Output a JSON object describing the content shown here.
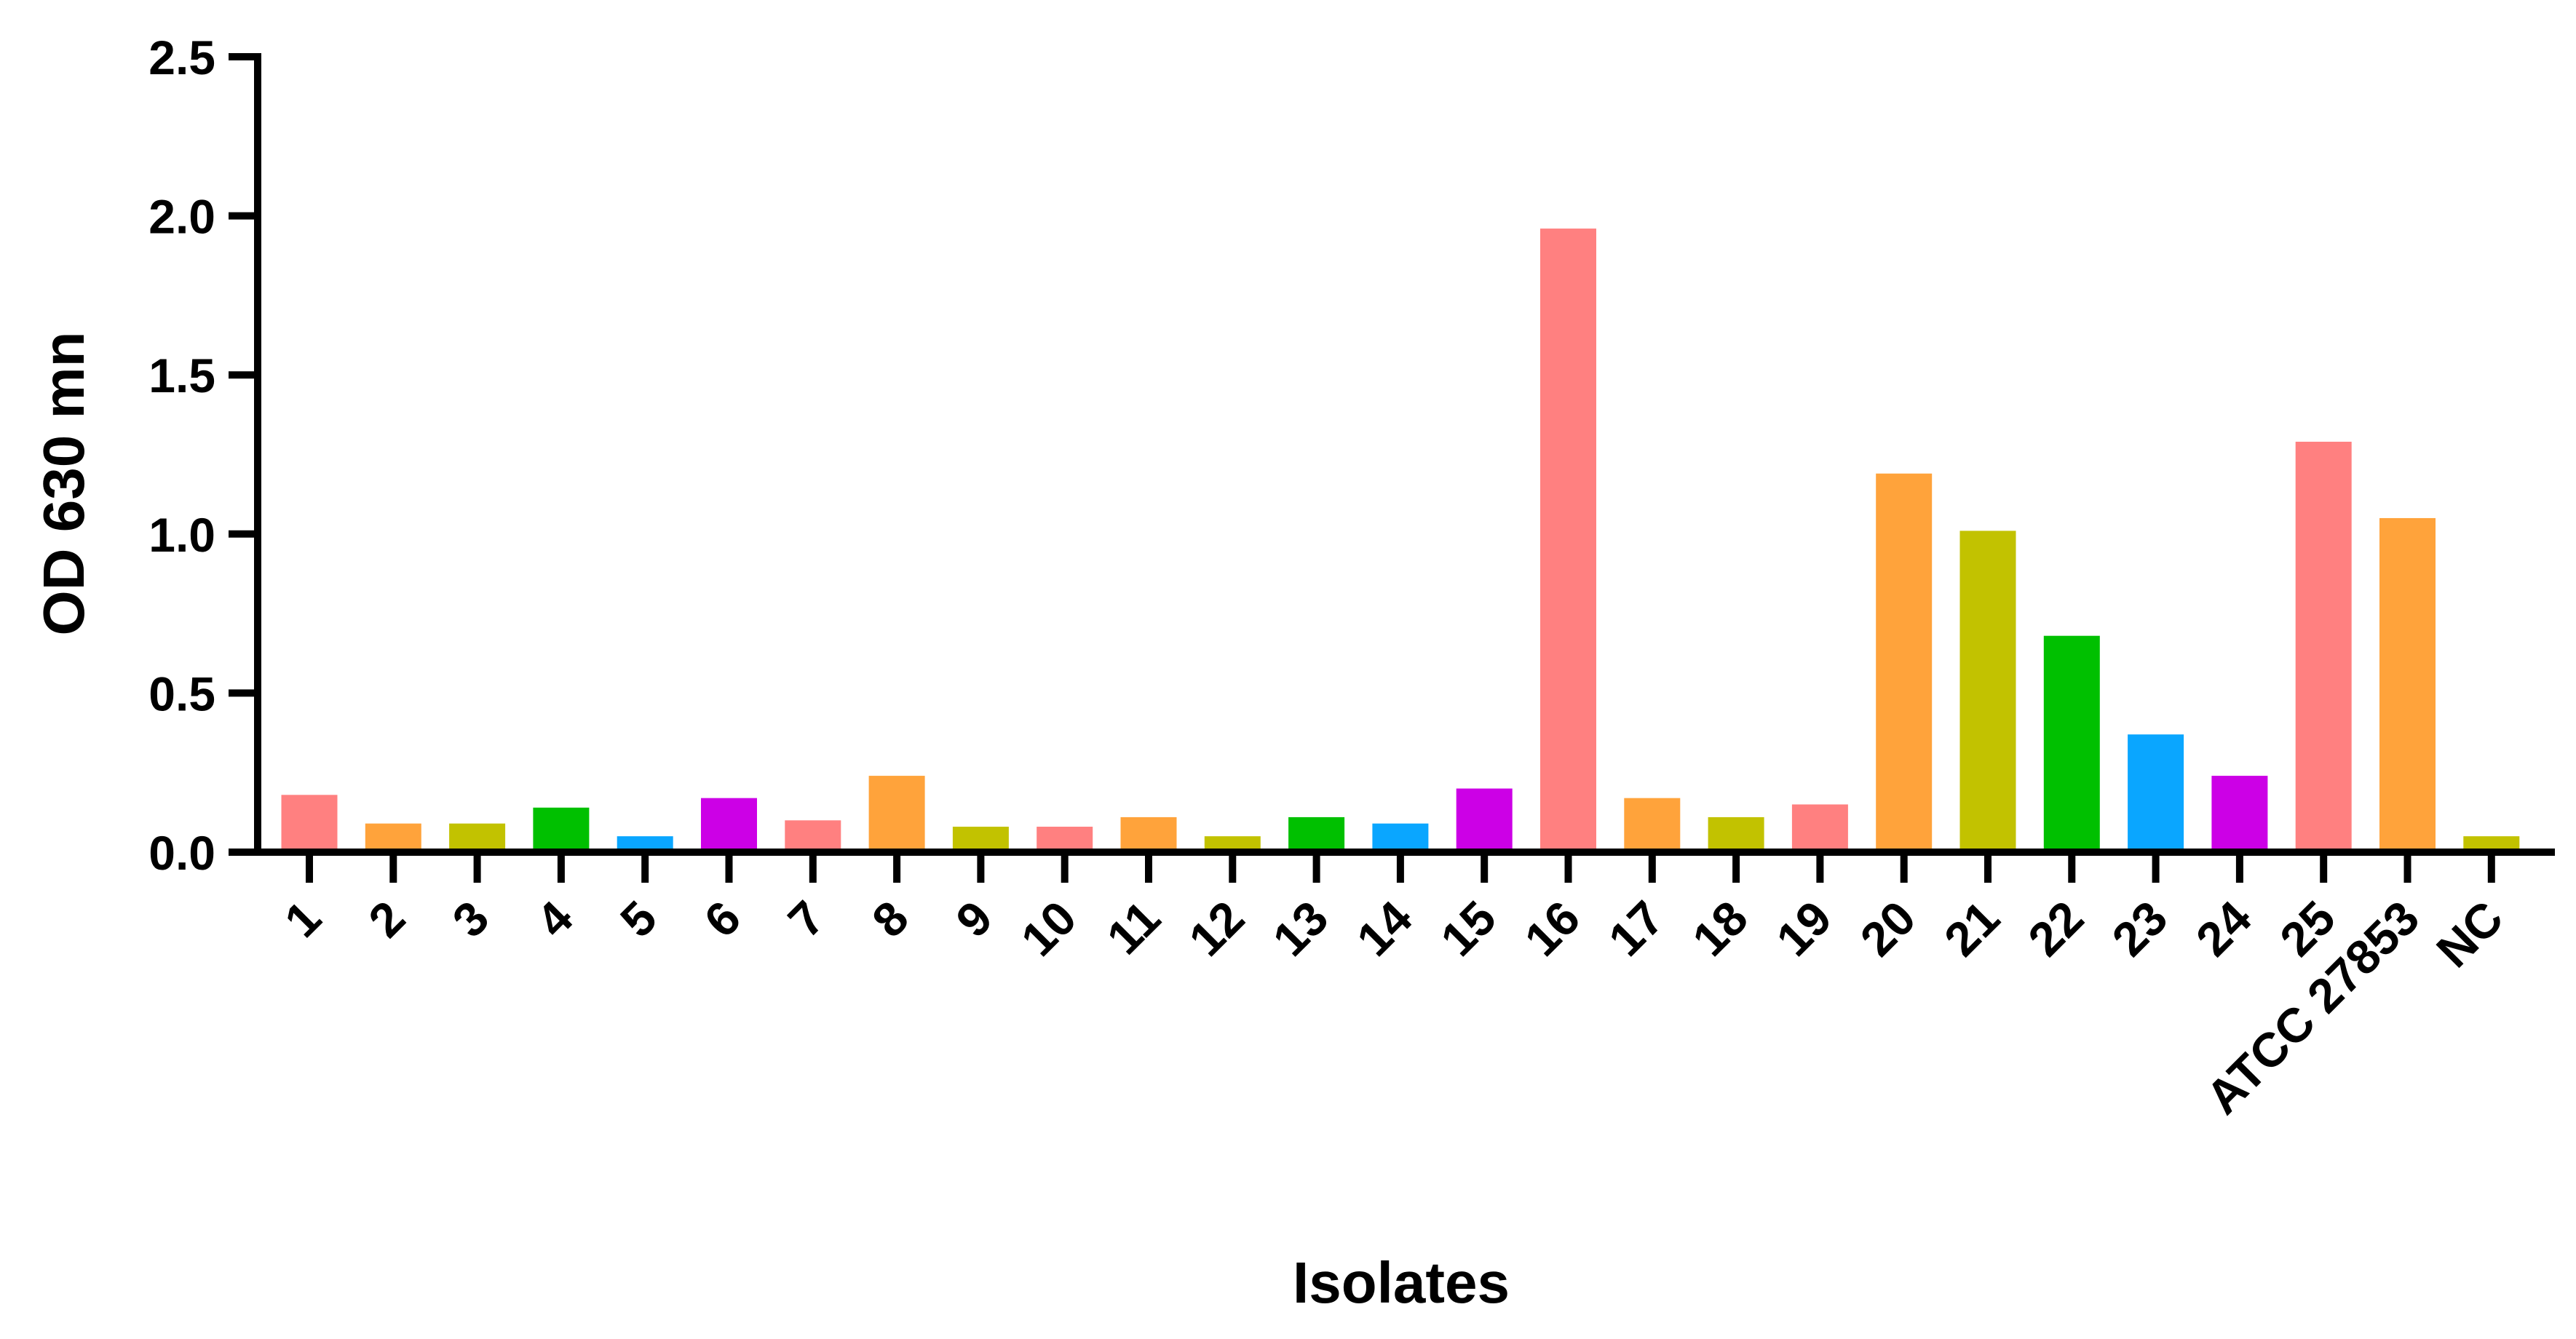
{
  "chart_data": {
    "type": "bar",
    "xlabel": "Isolates",
    "ylabel": "OD 630 mn",
    "ylim": [
      0,
      2.5
    ],
    "yticks": [
      "0.0",
      "0.5",
      "1.0",
      "1.5",
      "2.0",
      "2.5"
    ],
    "grid": false,
    "categories": [
      "1",
      "2",
      "3",
      "4",
      "5",
      "6",
      "7",
      "8",
      "9",
      "10",
      "11",
      "12",
      "13",
      "14",
      "15",
      "16",
      "17",
      "18",
      "19",
      "20",
      "21",
      "22",
      "23",
      "24",
      "25",
      "ATCC 27853",
      "NC"
    ],
    "values": [
      0.18,
      0.09,
      0.09,
      0.14,
      0.05,
      0.17,
      0.1,
      0.24,
      0.08,
      0.08,
      0.11,
      0.05,
      0.11,
      0.09,
      0.2,
      1.96,
      0.17,
      0.11,
      0.15,
      1.19,
      1.01,
      0.68,
      0.37,
      0.24,
      1.29,
      1.05,
      0.05
    ],
    "colors": [
      "#FF8080",
      "#FFA33B",
      "#C2C200",
      "#00C000",
      "#0AA6FF",
      "#CC00E6",
      "#FF8080",
      "#FFA33B",
      "#C2C200",
      "#FF8080",
      "#FFA33B",
      "#C2C200",
      "#00C000",
      "#0AA6FF",
      "#CC00E6",
      "#FF8080",
      "#FFA33B",
      "#C2C200",
      "#FF8080",
      "#FFA33B",
      "#C2C200",
      "#00C000",
      "#0AA6FF",
      "#CC00E6",
      "#FF8080",
      "#FFA33B",
      "#C2C200"
    ]
  }
}
